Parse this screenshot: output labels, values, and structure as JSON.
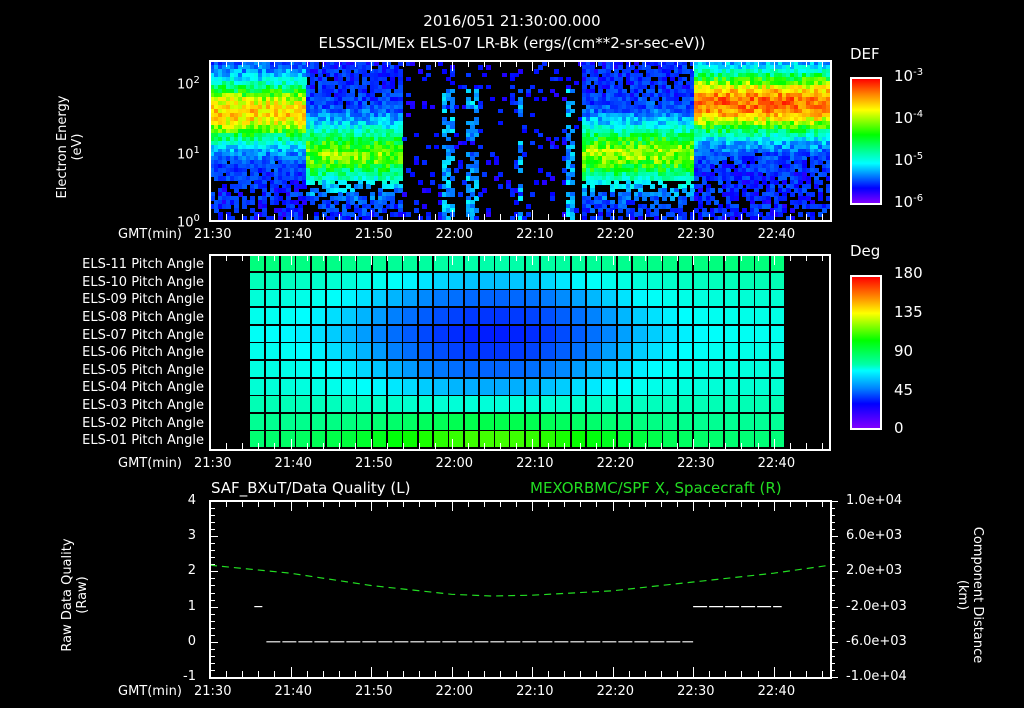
{
  "header": {
    "datetime": "2016/051 21:30:00.000",
    "subtitle": "ELSSCIL/MEx ELS-07 LR-Bk  (ergs/(cm**2-sr-sec-eV))"
  },
  "time_axis": {
    "label": "GMT(min)",
    "ticks": [
      "21:30",
      "21:40",
      "21:50",
      "22:00",
      "22:10",
      "22:20",
      "22:30",
      "22:40"
    ]
  },
  "colors": {
    "background": "#000000",
    "axis": "#ffffff",
    "green_trace": "#22dd22",
    "quality_trace": "#ffffff"
  },
  "chart_data": [
    {
      "type": "heatmap",
      "title": "ELSSCIL/MEx ELS-07 LR-Bk  (ergs/(cm**2-sr-sec-eV))",
      "ylabel": "Electron Energy (eV)",
      "xlabel": "GMT(min)",
      "yscale": "log",
      "ylim": [
        1,
        150
      ],
      "y_ticks": [
        "10^0",
        "10^1",
        "10^2"
      ],
      "x_range": [
        "21:30",
        "22:47"
      ],
      "colorbar": {
        "label": "DEF",
        "scale": "log",
        "range": [
          1e-06,
          0.001
        ],
        "ticks": [
          "10^-3",
          "10^-4",
          "10^-5",
          "10^-6"
        ]
      },
      "regions": [
        {
          "from": "21:30",
          "to": "21:42",
          "energy_peak_eV": 30,
          "level": "1e-4"
        },
        {
          "from": "21:42",
          "to": "21:54",
          "energy_peak_eV": 8,
          "level": "3e-5"
        },
        {
          "from": "21:54",
          "to": "22:16",
          "energy_peak_eV": null,
          "level": "sparse/noise"
        },
        {
          "from": "22:16",
          "to": "22:30",
          "energy_peak_eV": 8,
          "level": "3e-5"
        },
        {
          "from": "22:30",
          "to": "22:47",
          "energy_peak_eV": 40,
          "level": "2e-4"
        }
      ]
    },
    {
      "type": "heatmap",
      "title": "Pitch Angle",
      "xlabel": "GMT(min)",
      "rows": [
        "ELS-11 Pitch Angle",
        "ELS-10 Pitch Angle",
        "ELS-09 Pitch Angle",
        "ELS-08 Pitch Angle",
        "ELS-07 Pitch Angle",
        "ELS-06 Pitch Angle",
        "ELS-05 Pitch Angle",
        "ELS-04 Pitch Angle",
        "ELS-03 Pitch Angle",
        "ELS-02 Pitch Angle",
        "ELS-01 Pitch Angle"
      ],
      "x_range": [
        "21:35",
        "22:41"
      ],
      "columns": 35,
      "colorbar": {
        "label": "Deg",
        "range": [
          0,
          180
        ],
        "ticks": [
          "180",
          "135",
          "90",
          "45",
          "0"
        ]
      },
      "row_center_deg_at_2205": [
        90,
        63,
        48,
        38,
        33,
        38,
        48,
        60,
        80,
        100,
        115
      ],
      "row_deg_at_edges": [
        95,
        88,
        82,
        78,
        76,
        78,
        80,
        82,
        88,
        92,
        95
      ]
    },
    {
      "type": "line",
      "title_left": "SAF_BXuT/Data Quality (L)",
      "title_right": "MEXORBMC/SPF X, Spacecraft (R)",
      "ylabel_left": "Raw Data Quality (Raw)",
      "ylabel_right": "Component Distance (km)",
      "ylim_left": [
        -1,
        4
      ],
      "ylim_right": [
        -10000,
        10000
      ],
      "y_ticks_left": [
        "4",
        "3",
        "2",
        "1",
        "0",
        "-1"
      ],
      "y_ticks_right": [
        "1.0e+04",
        "6.0e+03",
        "2.0e+03",
        "-2.0e+03",
        "-6.0e+03",
        "-1.0e+04"
      ],
      "series": [
        {
          "name": "Data Quality",
          "axis": "left",
          "style": "white dashes",
          "segments": [
            {
              "from": "21:35.5",
              "to": "21:36.5",
              "value": 1
            },
            {
              "from": "21:37",
              "to": "22:30",
              "value": 0
            },
            {
              "from": "22:30",
              "to": "22:41",
              "value": 1
            }
          ]
        },
        {
          "name": "SPF X",
          "axis": "right",
          "style": "green dashed",
          "x": [
            "21:30",
            "21:40",
            "21:50",
            "22:00",
            "22:05",
            "22:10",
            "22:20",
            "22:30",
            "22:40",
            "22:47"
          ],
          "values": [
            2700,
            1800,
            400,
            -600,
            -800,
            -700,
            -200,
            800,
            1800,
            2700
          ]
        }
      ]
    }
  ],
  "panel1": {
    "ylabel_line1": "Electron Energy",
    "ylabel_line2": "(eV)",
    "yticks": [
      {
        "base": "10",
        "exp": "2"
      },
      {
        "base": "10",
        "exp": "1"
      },
      {
        "base": "10",
        "exp": "0"
      }
    ],
    "cbar_label": "DEF",
    "cbar_ticks": [
      {
        "base": "10",
        "exp": "-3"
      },
      {
        "base": "10",
        "exp": "-4"
      },
      {
        "base": "10",
        "exp": "-5"
      },
      {
        "base": "10",
        "exp": "-6"
      }
    ]
  },
  "panel2": {
    "rows": [
      "ELS-11 Pitch Angle",
      "ELS-10 Pitch Angle",
      "ELS-09 Pitch Angle",
      "ELS-08 Pitch Angle",
      "ELS-07 Pitch Angle",
      "ELS-06 Pitch Angle",
      "ELS-05 Pitch Angle",
      "ELS-04 Pitch Angle",
      "ELS-03 Pitch Angle",
      "ELS-02 Pitch Angle",
      "ELS-01 Pitch Angle"
    ],
    "cbar_label": "Deg",
    "cbar_ticks": [
      "180",
      "135",
      "90",
      "45",
      "0"
    ]
  },
  "panel3": {
    "title_left": "SAF_BXuT/Data Quality (L)",
    "title_right": "MEXORBMC/SPF X, Spacecraft (R)",
    "ylabel_left_line1": "Raw Data Quality",
    "ylabel_left_line2": "(Raw)",
    "ylabel_right_line1": "Component Distance",
    "ylabel_right_line2": "(km)",
    "yticks_left": [
      "4",
      "3",
      "2",
      "1",
      "0",
      "-1"
    ],
    "yticks_right": [
      "1.0e+04",
      "6.0e+03",
      "2.0e+03",
      "-2.0e+03",
      "-6.0e+03",
      "-1.0e+04"
    ]
  }
}
